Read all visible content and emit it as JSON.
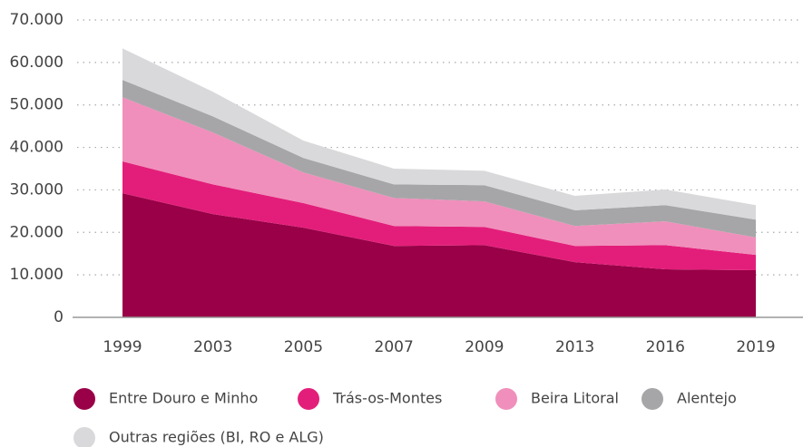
{
  "chart_data": {
    "type": "stacked_area",
    "categories": [
      "1999",
      "2003",
      "2005",
      "2007",
      "2009",
      "2013",
      "2016",
      "2019"
    ],
    "series": [
      {
        "name": "Entre Douro e Minho",
        "color": "#990047",
        "values": [
          29200,
          24300,
          21100,
          16800,
          17000,
          13000,
          11300,
          11100
        ]
      },
      {
        "name": "Trás-os-Montes",
        "color": "#e31e7a",
        "values": [
          7500,
          7000,
          5800,
          4700,
          4300,
          3800,
          5700,
          3600
        ]
      },
      {
        "name": "Beira Litoral",
        "color": "#f08fbb",
        "values": [
          15100,
          12200,
          7200,
          6600,
          6000,
          4700,
          5600,
          4100
        ]
      },
      {
        "name": "Alentejo",
        "color": "#a6a6a8",
        "values": [
          4100,
          3800,
          3400,
          3200,
          3800,
          3700,
          3800,
          4200
        ]
      },
      {
        "name": "Outras regiões (BI, RO e ALG)",
        "color": "#d9d9db",
        "values": [
          7400,
          5800,
          4100,
          3700,
          3400,
          3400,
          3700,
          3400
        ]
      }
    ],
    "ylim": [
      0,
      70000
    ],
    "yticks": [
      0,
      {
        "value": 10000,
        "label": "10.000"
      },
      {
        "value": 20000,
        "label": "20.000"
      },
      {
        "value": 30000,
        "label": "30.000"
      },
      {
        "value": 40000,
        "label": "40.000"
      },
      {
        "value": 50000,
        "label": "50.000"
      },
      {
        "value": 60000,
        "label": "60.000"
      },
      {
        "value": 70000,
        "label": "70.000"
      }
    ],
    "grid": true
  }
}
